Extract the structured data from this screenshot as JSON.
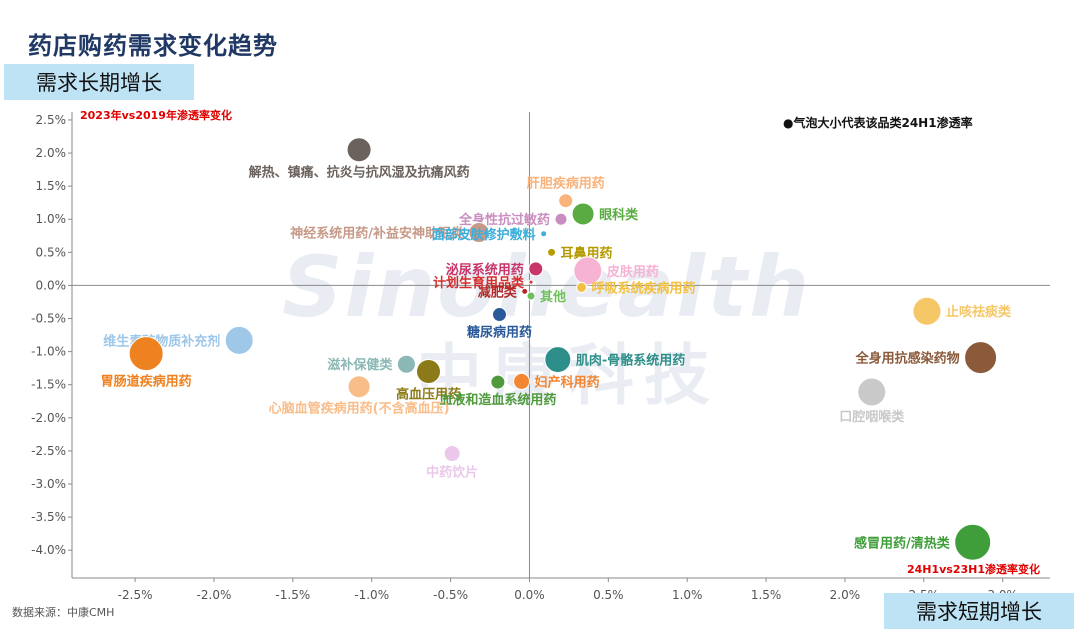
{
  "page": {
    "title": "药店购药需求变化趋势",
    "long_term_label": "需求长期增长",
    "short_term_label": "需求短期增长",
    "source": "数据来源：中康CMH",
    "watermark_en": "Sinohealth",
    "watermark_cn": "中康科技"
  },
  "chart_data": {
    "type": "scatter",
    "title": "药店购药需求变化趋势",
    "xlabel": "24H1vs23H1渗透率变化",
    "ylabel": "2023年vs2019年渗透率变化",
    "legend_note": "●气泡大小代表该品类24H1渗透率",
    "xlim": [
      -0.029,
      0.033
    ],
    "ylim": [
      -0.0442,
      0.0262
    ],
    "x_ticks": [
      -0.025,
      -0.02,
      -0.015,
      -0.01,
      -0.005,
      0,
      0.005,
      0.01,
      0.015,
      0.02,
      0.025,
      0.03
    ],
    "x_tick_labels": [
      "-2.5%",
      "-2.0%",
      "-1.5%",
      "-1.0%",
      "-0.5%",
      "0.0%",
      "0.5%",
      "1.0%",
      "1.5%",
      "2.0%",
      "2.5%",
      "3.0%"
    ],
    "y_ticks": [
      0.025,
      0.02,
      0.015,
      0.01,
      0.005,
      0,
      -0.005,
      -0.01,
      -0.015,
      -0.02,
      -0.025,
      -0.03,
      -0.035,
      -0.04
    ],
    "y_tick_labels": [
      "2.5%",
      "2.0%",
      "1.5%",
      "1.0%",
      "0.5%",
      "0.0%",
      "-0.5%",
      "-1.0%",
      "-1.5%",
      "-2.0%",
      "-2.5%",
      "-3.0%",
      "-3.5%",
      "-4.0%"
    ],
    "grid": false,
    "colors": {
      "axis_label_red": "#e00000",
      "title_navy": "#1f3864",
      "label_bg": "#bde3f5"
    },
    "points": [
      {
        "label": "解热、镇痛、抗炎与抗风湿及抗痛风药",
        "x": -0.0108,
        "y": 0.0205,
        "size": 12,
        "color": "#6b625d",
        "pos": "below"
      },
      {
        "label": "肝胆疾病用药",
        "x": 0.0023,
        "y": 0.0128,
        "size": 7,
        "color": "#f8b27a",
        "pos": "above"
      },
      {
        "label": "全身性抗过敏药",
        "x": 0.002,
        "y": 0.01,
        "size": 6,
        "color": "#c98ebf",
        "pos": "left"
      },
      {
        "label": "眼科类",
        "x": 0.0034,
        "y": 0.0108,
        "size": 11,
        "color": "#5aac42",
        "pos": "right"
      },
      {
        "label": "神经系统用药/补益安神助眠类",
        "x": -0.0032,
        "y": 0.008,
        "size": 10,
        "color": "#c79a88",
        "pos": "left"
      },
      {
        "label": "面部皮肤修护敷料",
        "x": 0.0009,
        "y": 0.0078,
        "size": 3,
        "color": "#3aaedc",
        "pos": "left"
      },
      {
        "label": "耳鼻用药",
        "x": 0.0014,
        "y": 0.005,
        "size": 4,
        "color": "#b59a00",
        "pos": "right"
      },
      {
        "label": "泌尿系统用药",
        "x": 0.0004,
        "y": 0.0025,
        "size": 7,
        "color": "#c7356a",
        "pos": "left"
      },
      {
        "label": "皮肤用药",
        "x": 0.0037,
        "y": 0.0022,
        "size": 14,
        "color": "#f7b3d4",
        "pos": "right"
      },
      {
        "label": "计划生育用品类",
        "x": 0.0001,
        "y": 0.0005,
        "size": 2,
        "color": "#d62d2d",
        "pos": "left"
      },
      {
        "label": "减肥类",
        "x": -0.0003,
        "y": -0.0009,
        "size": 3,
        "color": "#b32a2a",
        "pos": "left"
      },
      {
        "label": "其他",
        "x": 0.0001,
        "y": -0.0016,
        "size": 4,
        "color": "#6fbf5a",
        "pos": "right"
      },
      {
        "label": "呼吸系统疾病用药",
        "x": 0.0033,
        "y": -0.0003,
        "size": 5,
        "color": "#f2c040",
        "pos": "right"
      },
      {
        "label": "止咳祛痰类",
        "x": 0.0252,
        "y": -0.0039,
        "size": 14,
        "color": "#f5c766",
        "pos": "right"
      },
      {
        "label": "维生素矿物质补充剂",
        "x": -0.0184,
        "y": -0.0083,
        "size": 14,
        "color": "#9ec7e8",
        "pos": "left"
      },
      {
        "label": "糖尿病用药",
        "x": -0.0019,
        "y": -0.0044,
        "size": 7,
        "color": "#2b5a9b",
        "pos": "below"
      },
      {
        "label": "胃肠道疾病用药",
        "x": -0.0243,
        "y": -0.0103,
        "size": 17,
        "color": "#ef8220",
        "pos": "below"
      },
      {
        "label": "肌肉-骨骼系统用药",
        "x": 0.0018,
        "y": -0.0112,
        "size": 13,
        "color": "#2e8f8a",
        "pos": "right"
      },
      {
        "label": "全身用抗感染药物",
        "x": 0.0286,
        "y": -0.0109,
        "size": 16,
        "color": "#8a5a3b",
        "pos": "left"
      },
      {
        "label": "滋补保健类",
        "x": -0.0078,
        "y": -0.0119,
        "size": 9,
        "color": "#8bb8b5",
        "pos": "left"
      },
      {
        "label": "高血压用药",
        "x": -0.0064,
        "y": -0.013,
        "size": 12,
        "color": "#8c7a18",
        "pos": "below"
      },
      {
        "label": "血液和造血系统用药",
        "x": -0.002,
        "y": -0.0146,
        "size": 7,
        "color": "#4f9a3c",
        "pos": "below"
      },
      {
        "label": "妇产科用药",
        "x": -0.0005,
        "y": -0.0145,
        "size": 8,
        "color": "#f28633",
        "pos": "right"
      },
      {
        "label": "口腔咽喉类",
        "x": 0.0217,
        "y": -0.0161,
        "size": 14,
        "color": "#c9c9c9",
        "pos": "below"
      },
      {
        "label": "心脑血管疾病用药(不含高血压)",
        "x": -0.0108,
        "y": -0.0153,
        "size": 11,
        "color": "#f9bd8a",
        "pos": "below"
      },
      {
        "label": "中药饮片",
        "x": -0.0049,
        "y": -0.0254,
        "size": 8,
        "color": "#ebc8eb",
        "pos": "below"
      },
      {
        "label": "感冒用药/清热类",
        "x": 0.0281,
        "y": -0.0388,
        "size": 18,
        "color": "#3f9e3a",
        "pos": "left"
      }
    ]
  }
}
